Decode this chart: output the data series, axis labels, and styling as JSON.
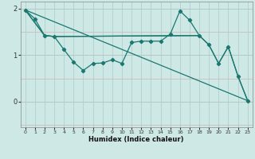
{
  "xlabel": "Humidex (Indice chaleur)",
  "bg_color": "#cde8e5",
  "grid_color": "#aacccc",
  "line_color": "#1a7870",
  "xlim": [
    -0.5,
    23.5
  ],
  "ylim": [
    -0.55,
    2.15
  ],
  "yticks": [
    0,
    1,
    2
  ],
  "xticks": [
    0,
    1,
    2,
    3,
    4,
    5,
    6,
    7,
    8,
    9,
    10,
    11,
    12,
    13,
    14,
    15,
    16,
    17,
    18,
    19,
    20,
    21,
    22,
    23
  ],
  "lines": [
    {
      "x": [
        0,
        1,
        2,
        3,
        4,
        5,
        6,
        7,
        8,
        9,
        10,
        11,
        12,
        13,
        14,
        15,
        16,
        17,
        18,
        19,
        20,
        21,
        22,
        23
      ],
      "y": [
        1.97,
        1.78,
        1.42,
        1.4,
        1.12,
        0.85,
        0.67,
        0.82,
        0.83,
        0.9,
        0.82,
        1.27,
        1.3,
        1.3,
        1.3,
        1.45,
        1.95,
        1.75,
        1.42,
        1.22,
        0.82,
        1.18,
        0.55,
        0.02
      ],
      "marker": true
    },
    {
      "x": [
        0,
        2,
        3,
        18
      ],
      "y": [
        1.97,
        1.42,
        1.4,
        1.42
      ],
      "marker": false
    },
    {
      "x": [
        0,
        2,
        3,
        18,
        19,
        20,
        21,
        22,
        23
      ],
      "y": [
        1.97,
        1.42,
        1.4,
        1.42,
        1.22,
        0.82,
        1.18,
        0.55,
        0.02
      ],
      "marker": false
    },
    {
      "x": [
        0,
        23
      ],
      "y": [
        1.97,
        0.02
      ],
      "marker": false
    }
  ]
}
